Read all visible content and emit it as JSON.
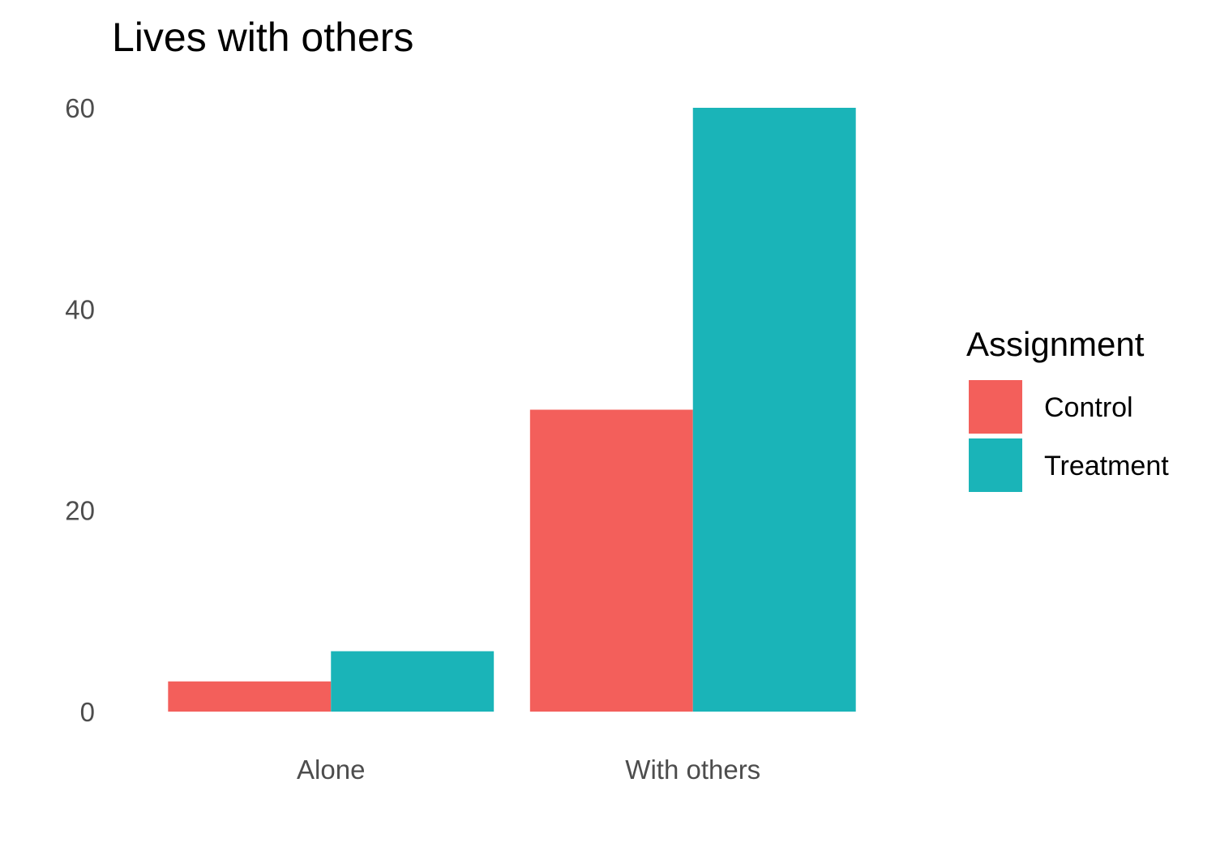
{
  "chart_data": {
    "type": "bar",
    "title": "Lives with others",
    "xlabel": "",
    "ylabel": "",
    "categories": [
      "Alone",
      "With others"
    ],
    "series": [
      {
        "name": "Control",
        "values": [
          3,
          30
        ],
        "color": "#F35F5B"
      },
      {
        "name": "Treatment",
        "values": [
          6,
          60
        ],
        "color": "#1AB4B8"
      }
    ],
    "ylim": [
      0,
      60
    ],
    "yticks": [
      0,
      20,
      40,
      60
    ],
    "grid": false,
    "legend": {
      "title": "Assignment",
      "position": "right"
    }
  }
}
